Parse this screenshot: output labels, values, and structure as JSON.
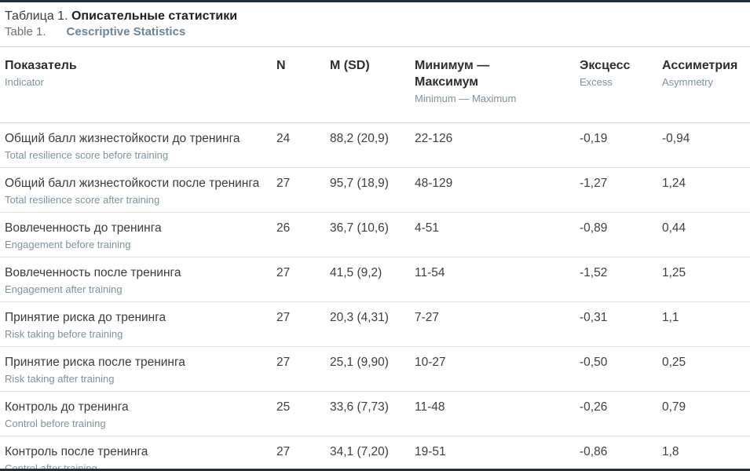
{
  "caption": {
    "ru_prefix": "Таблица 1. ",
    "ru_title": "Описательные статистики",
    "en_prefix": "Table 1.",
    "en_title": "Cescriptive Statistics"
  },
  "columns": {
    "indicator": {
      "ru": "Показатель",
      "en": "Indicator"
    },
    "n": {
      "ru": "N",
      "en": ""
    },
    "msd": {
      "ru": "M (SD)",
      "en": ""
    },
    "minmax": {
      "ru": "Минимум — Максимум",
      "en": "Minimum — Maximum"
    },
    "excess": {
      "ru": "Эксцесс",
      "en": "Excess"
    },
    "asymmetry": {
      "ru": "Ассиметрия",
      "en": "Asymmetry"
    }
  },
  "rows": [
    {
      "ru": "Общий балл жизнестойкости до тренинга",
      "en": "Total resilience score before training",
      "n": "24",
      "msd": "88,2 (20,9)",
      "minmax": "22-126",
      "excess": "-0,19",
      "asymmetry": "-0,94"
    },
    {
      "ru": "Общий балл жизнестойкости после тренинга",
      "en": "Total resilience score after training",
      "n": "27",
      "msd": "95,7 (18,9)",
      "minmax": "48-129",
      "excess": "-1,27",
      "asymmetry": "1,24"
    },
    {
      "ru": "Вовлеченность до тренинга",
      "en": "Engagement before training",
      "n": "26",
      "msd": "36,7 (10,6)",
      "minmax": "4-51",
      "excess": "-0,89",
      "asymmetry": "0,44"
    },
    {
      "ru": "Вовлеченность после тренинга",
      "en": "Engagement after training",
      "n": "27",
      "msd": "41,5 (9,2)",
      "minmax": "11-54",
      "excess": "-1,52",
      "asymmetry": "1,25"
    },
    {
      "ru": "Принятие риска до тренинга",
      "en": "Risk taking before training",
      "n": "27",
      "msd": "20,3 (4,31)",
      "minmax": "7-27",
      "excess": "-0,31",
      "asymmetry": "1,1"
    },
    {
      "ru": "Принятие риска после тренинга",
      "en": "Risk taking after training",
      "n": "27",
      "msd": "25,1 (9,90)",
      "minmax": "10-27",
      "excess": "-0,50",
      "asymmetry": "0,25"
    },
    {
      "ru": "Контроль до тренинга",
      "en": "Control before training",
      "n": "25",
      "msd": "33,6 (7,73)",
      "minmax": "11-48",
      "excess": "-0,26",
      "asymmetry": "0,79"
    },
    {
      "ru": "Контроль после тренинга",
      "en": "Control after training",
      "n": "27",
      "msd": "34,1 (7,20)",
      "minmax": "19-51",
      "excess": "-0,86",
      "asymmetry": "1,8"
    }
  ]
}
